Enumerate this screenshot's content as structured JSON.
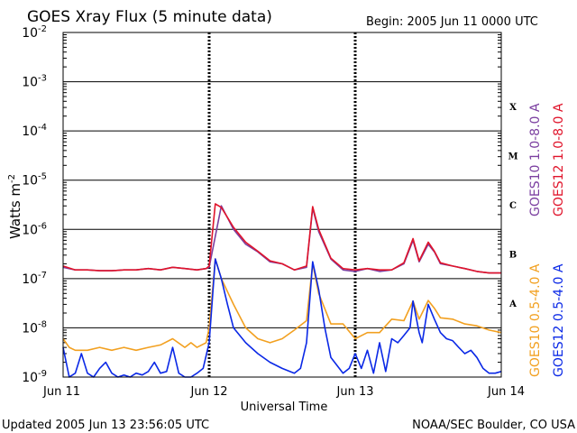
{
  "chart_data": {
    "type": "line",
    "title": "GOES Xray Flux (5 minute data)",
    "begin_label": "Begin:  2005 Jun 11 0000 UTC",
    "ylabel": "Watts m",
    "ylabel_exp": "-2",
    "xlabel": "Universal Time",
    "y_scale": "log",
    "ylim": [
      1e-09,
      0.01
    ],
    "x_unit": "hours since 2005 Jun 11 0000 UTC",
    "xlim": [
      0,
      72
    ],
    "y_ticks": [
      {
        "value": 0.01,
        "base": "10",
        "exp": "-2"
      },
      {
        "value": 0.001,
        "base": "10",
        "exp": "-3"
      },
      {
        "value": 0.0001,
        "base": "10",
        "exp": "-4"
      },
      {
        "value": 1e-05,
        "base": "10",
        "exp": "-5"
      },
      {
        "value": 1e-06,
        "base": "10",
        "exp": "-6"
      },
      {
        "value": 1e-07,
        "base": "10",
        "exp": "-7"
      },
      {
        "value": 1e-08,
        "base": "10",
        "exp": "-8"
      },
      {
        "value": 1e-09,
        "base": "10",
        "exp": "-9"
      }
    ],
    "x_ticks": [
      {
        "value": 0,
        "label": "Jun 11"
      },
      {
        "value": 24,
        "label": "Jun 12"
      },
      {
        "value": 48,
        "label": "Jun 13"
      },
      {
        "value": 72,
        "label": "Jun 14"
      }
    ],
    "flare_classes": [
      {
        "label": "X",
        "value": 0.000316
      },
      {
        "label": "M",
        "value": 3.16e-05
      },
      {
        "label": "C",
        "value": 3.16e-06
      },
      {
        "label": "B",
        "value": 3.16e-07
      },
      {
        "label": "A",
        "value": 3.16e-08
      }
    ],
    "grid": true,
    "series": [
      {
        "name": "GOES10 1.0-8.0 A",
        "color": "#7b3fa0",
        "x": [
          0,
          2,
          4,
          6,
          8,
          10,
          12,
          14,
          16,
          18,
          20,
          22,
          23.5,
          24,
          26,
          28,
          30,
          32,
          34,
          36,
          38,
          40,
          41,
          42,
          44,
          46,
          48,
          50,
          52,
          54,
          56,
          57.5,
          58.5,
          60,
          61,
          62,
          64,
          66,
          68,
          70,
          72
        ],
        "values": [
          1.7e-07,
          1.5e-07,
          1.5e-07,
          1.45e-07,
          1.45e-07,
          1.5e-07,
          1.5e-07,
          1.6e-07,
          1.5e-07,
          1.7e-07,
          1.6e-07,
          1.5e-07,
          1.6e-07,
          1.7e-07,
          3e-06,
          1e-06,
          5e-07,
          3.5e-07,
          2.2e-07,
          2e-07,
          1.5e-07,
          1.7e-07,
          2.7e-06,
          9e-07,
          2.5e-07,
          1.5e-07,
          1.4e-07,
          1.6e-07,
          1.4e-07,
          1.5e-07,
          2e-07,
          6e-07,
          2.2e-07,
          5e-07,
          3.5e-07,
          2e-07,
          1.8e-07,
          1.6e-07,
          1.4e-07,
          1.3e-07,
          1.3e-07
        ]
      },
      {
        "name": "GOES12 1.0-8.0 A",
        "color": "#e0142b",
        "x": [
          0,
          2,
          4,
          6,
          8,
          10,
          12,
          14,
          16,
          18,
          20,
          22,
          23.5,
          24,
          25,
          26,
          28,
          30,
          32,
          34,
          36,
          38,
          40,
          41,
          42,
          44,
          46,
          48,
          50,
          52,
          54,
          56,
          57.5,
          58.5,
          60,
          61,
          62,
          64,
          66,
          68,
          70,
          72
        ],
        "values": [
          1.8e-07,
          1.5e-07,
          1.5e-07,
          1.45e-07,
          1.45e-07,
          1.5e-07,
          1.5e-07,
          1.6e-07,
          1.5e-07,
          1.7e-07,
          1.6e-07,
          1.5e-07,
          1.6e-07,
          1.8e-07,
          3.3e-06,
          2.8e-06,
          1.1e-06,
          5.5e-07,
          3.6e-07,
          2.3e-07,
          2e-07,
          1.5e-07,
          1.8e-07,
          2.9e-06,
          1e-06,
          2.6e-07,
          1.6e-07,
          1.5e-07,
          1.6e-07,
          1.5e-07,
          1.5e-07,
          2.1e-07,
          6.5e-07,
          2.3e-07,
          5.5e-07,
          3.6e-07,
          2.1e-07,
          1.8e-07,
          1.6e-07,
          1.4e-07,
          1.3e-07,
          1.3e-07
        ]
      },
      {
        "name": "GOES10 0.5-4.0 A",
        "color": "#f2a020",
        "x": [
          0,
          1,
          2,
          4,
          6,
          8,
          10,
          12,
          14,
          16,
          18,
          20,
          21,
          22,
          23.5,
          24,
          25,
          26,
          28,
          30,
          32,
          34,
          36,
          38,
          40,
          41,
          42,
          44,
          46,
          48,
          50,
          52,
          54,
          56,
          57.5,
          58.5,
          60,
          61,
          62,
          64,
          66,
          68,
          70,
          72
        ],
        "values": [
          6e-09,
          4e-09,
          3.5e-09,
          3.5e-09,
          4e-09,
          3.5e-09,
          4e-09,
          3.5e-09,
          4e-09,
          4.5e-09,
          6e-09,
          4e-09,
          5e-09,
          4e-09,
          5e-09,
          1e-08,
          2.5e-07,
          1e-07,
          3e-08,
          1e-08,
          6e-09,
          5e-09,
          6e-09,
          9e-09,
          1.4e-08,
          2e-07,
          5e-08,
          1.2e-08,
          1.2e-08,
          6e-09,
          8e-09,
          8e-09,
          1.5e-08,
          1.4e-08,
          3.5e-08,
          1.5e-08,
          3.6e-08,
          2.5e-08,
          1.6e-08,
          1.5e-08,
          1.2e-08,
          1.1e-08,
          9e-09,
          8e-09
        ]
      },
      {
        "name": "GOES12 0.5-4.0 A",
        "color": "#0a28e6",
        "x": [
          0,
          1,
          2,
          3,
          4,
          5,
          6,
          7,
          8,
          9,
          10,
          11,
          12,
          13,
          14,
          15,
          16,
          17,
          18,
          19,
          20,
          21,
          22,
          23,
          24,
          25,
          26,
          27,
          28,
          30,
          32,
          34,
          36,
          38,
          39,
          40,
          41,
          42,
          43,
          44,
          46,
          47,
          48,
          49,
          50,
          51,
          52,
          53,
          54,
          55,
          56,
          57,
          57.5,
          58.5,
          59,
          60,
          61,
          62,
          63,
          64,
          65,
          66,
          67,
          68,
          69,
          70,
          71,
          72
        ],
        "values": [
          4e-09,
          1e-09,
          1.2e-09,
          3e-09,
          1.2e-09,
          1e-09,
          1.5e-09,
          2e-09,
          1.2e-09,
          1e-09,
          1.1e-09,
          1e-09,
          1.2e-09,
          1.1e-09,
          1.3e-09,
          2e-09,
          1.2e-09,
          1.3e-09,
          4e-09,
          1.2e-09,
          1e-09,
          1e-09,
          1.2e-09,
          1.5e-09,
          5e-09,
          2.5e-07,
          1e-07,
          3e-08,
          1e-08,
          5e-09,
          3e-09,
          2e-09,
          1.5e-09,
          1.2e-09,
          1.5e-09,
          5e-09,
          2.2e-07,
          6e-08,
          1e-08,
          2.5e-09,
          1.2e-09,
          1.5e-09,
          3e-09,
          1.5e-09,
          3.5e-09,
          1.2e-09,
          5e-09,
          1.3e-09,
          6e-09,
          5e-09,
          7e-09,
          1e-08,
          3.5e-08,
          8e-09,
          5e-09,
          3e-08,
          1.5e-08,
          8e-09,
          6e-09,
          5.5e-09,
          4e-09,
          3e-09,
          3.5e-09,
          2.5e-09,
          1.5e-09,
          1.2e-09,
          1.2e-09,
          1.3e-09
        ]
      }
    ],
    "legend": "right, rotated vertical"
  },
  "footer": {
    "updated": "Updated 2005 Jun 13 23:56:05 UTC",
    "credit": "NOAA/SEC Boulder, CO USA"
  }
}
